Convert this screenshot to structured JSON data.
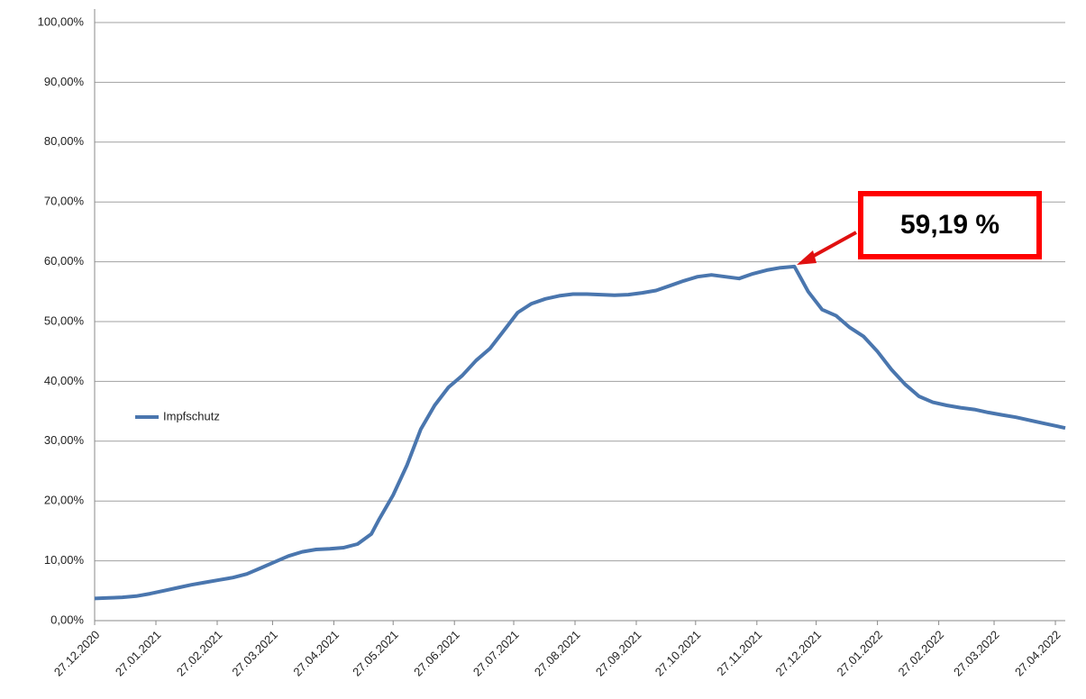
{
  "chart_data": {
    "type": "line",
    "series": [
      {
        "name": "Impfschutz",
        "color": "#4a76ae",
        "values": [
          3.7,
          3.8,
          3.9,
          4.1,
          4.5,
          5.0,
          5.5,
          6.0,
          6.4,
          6.8,
          7.2,
          7.8,
          8.8,
          9.8,
          10.8,
          11.5,
          11.9,
          12.0,
          12.2,
          12.8,
          14.5,
          17,
          21,
          26,
          32,
          36,
          39,
          41,
          43.5,
          45.5,
          48.5,
          51.5,
          53,
          53.8,
          54.3,
          54.6,
          54.6,
          54.5,
          54.4,
          54.5,
          54.8,
          55.2,
          56,
          56.8,
          57.5,
          57.8,
          57.5,
          57.2,
          58,
          58.6,
          59,
          59.2,
          55,
          52,
          51,
          49,
          47.5,
          45,
          42,
          39.5,
          37.5,
          36.5,
          36,
          35.6,
          35.3,
          34.8,
          34.4,
          34,
          33.5,
          33,
          32.5,
          32.2
        ]
      }
    ],
    "x": [
      "27.12.2020",
      "03.01.2021",
      "10.01.2021",
      "17.01.2021",
      "24.01.2021",
      "31.01.2021",
      "07.02.2021",
      "14.02.2021",
      "21.02.2021",
      "28.02.2021",
      "07.03.2021",
      "14.03.2021",
      "21.03.2021",
      "28.03.2021",
      "04.04.2021",
      "11.04.2021",
      "18.04.2021",
      "25.04.2021",
      "02.05.2021",
      "09.05.2021",
      "16.05.2021",
      "20.05.2021",
      "27.05.2021",
      "03.06.2021",
      "10.06.2021",
      "17.06.2021",
      "24.06.2021",
      "01.07.2021",
      "08.07.2021",
      "15.07.2021",
      "22.07.2021",
      "29.07.2021",
      "05.08.2021",
      "12.08.2021",
      "19.08.2021",
      "26.08.2021",
      "02.09.2021",
      "09.09.2021",
      "16.09.2021",
      "23.09.2021",
      "30.09.2021",
      "07.10.2021",
      "14.10.2021",
      "21.10.2021",
      "28.10.2021",
      "04.11.2021",
      "11.11.2021",
      "18.11.2021",
      "25.11.2021",
      "02.12.2021",
      "09.12.2021",
      "16.12.2021",
      "23.12.2021",
      "30.12.2021",
      "06.01.2022",
      "13.01.2022",
      "20.01.2022",
      "27.01.2022",
      "03.02.2022",
      "10.02.2022",
      "17.02.2022",
      "24.02.2022",
      "03.03.2022",
      "10.03.2022",
      "17.03.2022",
      "24.03.2022",
      "31.03.2022",
      "07.04.2022",
      "14.04.2022",
      "21.04.2022",
      "28.04.2022",
      "02.05.2022"
    ],
    "xlim": [
      "27.12.2020",
      "02.05.2022"
    ],
    "xticks": [
      "27.12.2020",
      "27.01.2021",
      "27.02.2021",
      "27.03.2021",
      "27.04.2021",
      "27.05.2021",
      "27.06.2021",
      "27.07.2021",
      "27.08.2021",
      "27.09.2021",
      "27.10.2021",
      "27.11.2021",
      "27.12.2021",
      "27.01.2022",
      "27.02.2022",
      "27.03.2022",
      "27.04.2022"
    ],
    "ylim": [
      0,
      100
    ],
    "yticks": [
      {
        "value": 0,
        "label": "0,00%"
      },
      {
        "value": 10,
        "label": "10,00%"
      },
      {
        "value": 20,
        "label": "20,00%"
      },
      {
        "value": 30,
        "label": "30,00%"
      },
      {
        "value": 40,
        "label": "40,00%"
      },
      {
        "value": 50,
        "label": "50,00%"
      },
      {
        "value": 60,
        "label": "60,00%"
      },
      {
        "value": 70,
        "label": "70,00%"
      },
      {
        "value": 80,
        "label": "80,00%"
      },
      {
        "value": 90,
        "label": "90,00%"
      },
      {
        "value": 100,
        "label": "100,00%"
      }
    ],
    "grid": true,
    "legend": "left",
    "annotation": "59,19 %"
  }
}
